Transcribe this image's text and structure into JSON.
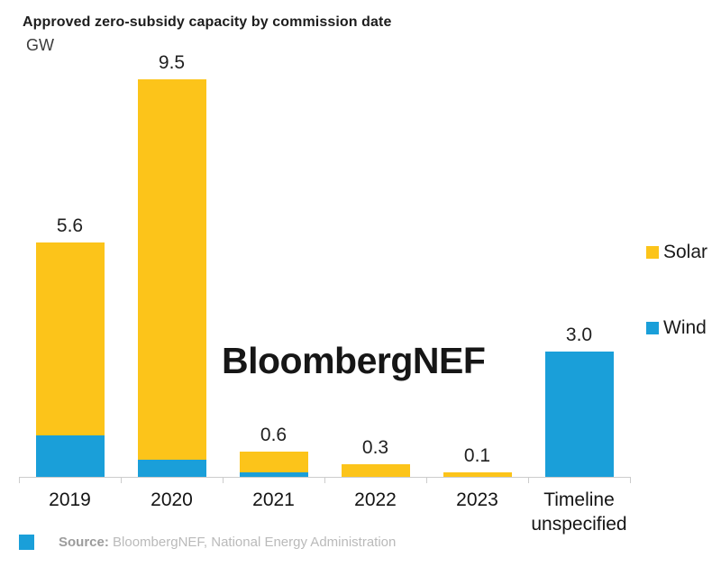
{
  "title": "Approved zero-subsidy capacity by commission date",
  "unit_label": "GW",
  "watermark": "BloombergNEF",
  "colors": {
    "solar": "#FCC41A",
    "wind": "#1A9FD9",
    "axis": "#cccccc"
  },
  "legend": {
    "solar_label": "Solar",
    "wind_label": "Wind"
  },
  "footer": {
    "source_prefix": "Source:",
    "source_text": "BloombergNEF, National Energy Administration"
  },
  "chart_data": {
    "type": "bar",
    "stacked": true,
    "title": "Approved zero-subsidy capacity by commission date",
    "ylabel": "GW",
    "ylim": [
      0,
      9.5
    ],
    "grid": false,
    "legend_position": "right",
    "categories": [
      "2019",
      "2020",
      "2021",
      "2022",
      "2023",
      "Timeline unspecified"
    ],
    "series": [
      {
        "name": "Solar",
        "color": "#FCC41A",
        "values": [
          4.6,
          9.1,
          0.5,
          0.3,
          0.1,
          0.0
        ]
      },
      {
        "name": "Wind",
        "color": "#1A9FD9",
        "values": [
          1.0,
          0.4,
          0.1,
          0.0,
          0.0,
          3.0
        ]
      }
    ],
    "totals": [
      5.6,
      9.5,
      0.6,
      0.3,
      0.1,
      3.0
    ],
    "total_labels": [
      "5.6",
      "9.5",
      "0.6",
      "0.3",
      "0.1",
      "3.0"
    ]
  }
}
